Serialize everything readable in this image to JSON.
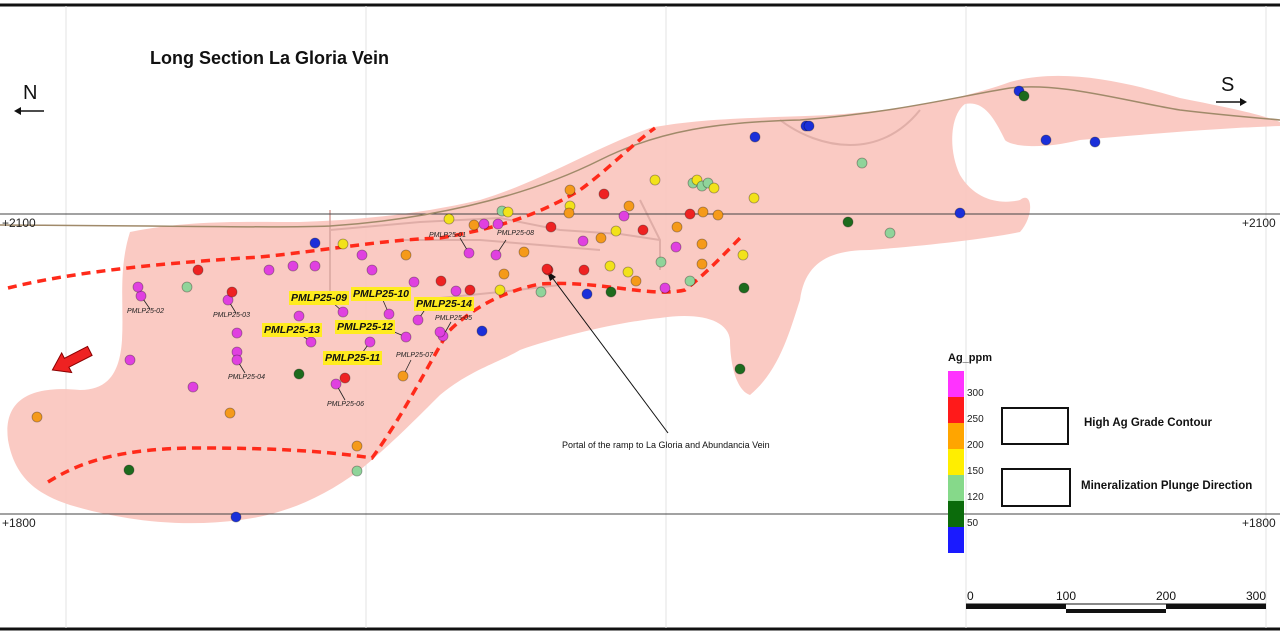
{
  "title": "Long Section La Gloria Vein",
  "compass": {
    "north": "N",
    "south": "S"
  },
  "elevations": {
    "upper": "+2100",
    "lower": "+1800"
  },
  "legend": {
    "title": "Ag_ppm",
    "ticks": [
      "300",
      "250",
      "200",
      "150",
      "120",
      "50"
    ],
    "colors": [
      "#ff33ff",
      "#ff1a1a",
      "#ffa500",
      "#ffee00",
      "#86d98a",
      "#0b6b0b",
      "#1a1aff"
    ]
  },
  "keys": {
    "contour_label": "High Ag Grade Contour",
    "plunge_label": "Mineralization Plunge Direction"
  },
  "annotation": "Portal of the ramp to La Gloria and Abundancia Vein",
  "scale_bar": {
    "labels": [
      "0",
      "100",
      "200",
      "300"
    ]
  },
  "drillholes_highlighted": [
    "PMLP25-09",
    "PMLP25-10",
    "PMLP25-14",
    "PMLP25-13",
    "PMLP25-12",
    "PMLP25-11"
  ],
  "drillholes_small": [
    "PMLP25-01",
    "PMLP25-08",
    "PMLP25-02",
    "PMLP25-03",
    "PMLP25-04",
    "PMLP25-06",
    "PMLP25-07",
    "PMLP25-05"
  ],
  "point_colors": {
    "pink": "#e040e0",
    "red": "#ee2222",
    "orange": "#f59a1a",
    "yellow": "#f2e21a",
    "lightgreen": "#8fd49a",
    "darkgreen": "#1d6b1d",
    "blue": "#1a2fd9"
  },
  "accent": {
    "contour": "#ff2a1a",
    "section_fill": "#f9c4bd"
  }
}
